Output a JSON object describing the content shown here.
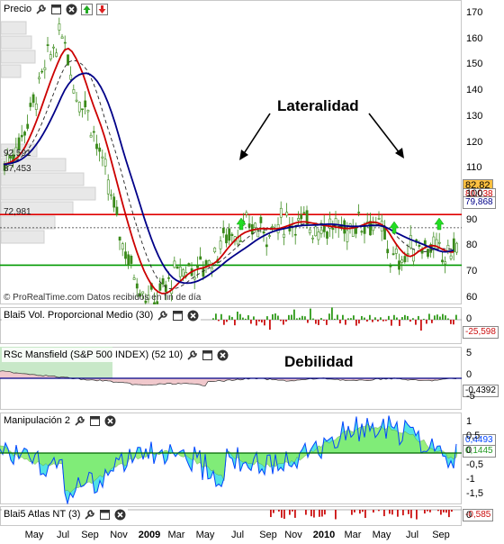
{
  "panels": {
    "price": {
      "title": "Precio"
    },
    "volume": {
      "title": "Blai5 Vol. Proporcional Medio (30)"
    },
    "mansfield": {
      "title": "RSc Mansfield (S&P 500 INDEX) (52 10)"
    },
    "manipulation": {
      "title": "Manipulación 2"
    },
    "atlas": {
      "title": "Blai5 Atlas NT (3)"
    }
  },
  "annotations": {
    "lateralidad": "Lateralidad",
    "debilidad": "Debilidad",
    "footer": "© ProRealTime.com  Datos recibidos en fin de día"
  },
  "levels": {
    "upper": "92,591",
    "middle": "87,453",
    "lower": "72,981"
  },
  "price_axis": [
    "170",
    "160",
    "150",
    "140",
    "130",
    "120",
    "110",
    "100",
    "90",
    "80",
    "70",
    "60"
  ],
  "volume_axis": [
    "0"
  ],
  "mansfield_axis": [
    "5",
    "0",
    "-5"
  ],
  "manip_axis": [
    "1",
    "0,5",
    "0",
    "-0,5",
    "-1",
    "-1,5"
  ],
  "atlas_axis": [
    "0"
  ],
  "value_tags": {
    "price_a": "82,82",
    "price_b": "80,038",
    "price_c": "79,868",
    "volume": "-25,598",
    "mansfield": "-0,4392",
    "manip_a": "0,4493",
    "manip_b": "0,1445",
    "atlas": "-0,585"
  },
  "x_axis": [
    "May",
    "Jul",
    "Sep",
    "Nov",
    "2009",
    "Mar",
    "May",
    "Jul",
    "Sep",
    "Nov",
    "2010",
    "Mar",
    "May",
    "Jul",
    "Sep"
  ],
  "colors": {
    "level_red": "#e00000",
    "level_green": "#009900",
    "ma_red": "#cc0000",
    "ma_blue": "#000088",
    "candle": "#3a8a1a",
    "vol_up": "#2e9a18",
    "vol_down": "#cc1111",
    "mansfield_pos": "#c8e8c8",
    "mansfield_neg": "#f0c8cc",
    "manip_cyan": "#40e0e0",
    "manip_green": "#88ee66",
    "manip_blue": "#0044ff",
    "tag_price": "#ffc040"
  }
}
